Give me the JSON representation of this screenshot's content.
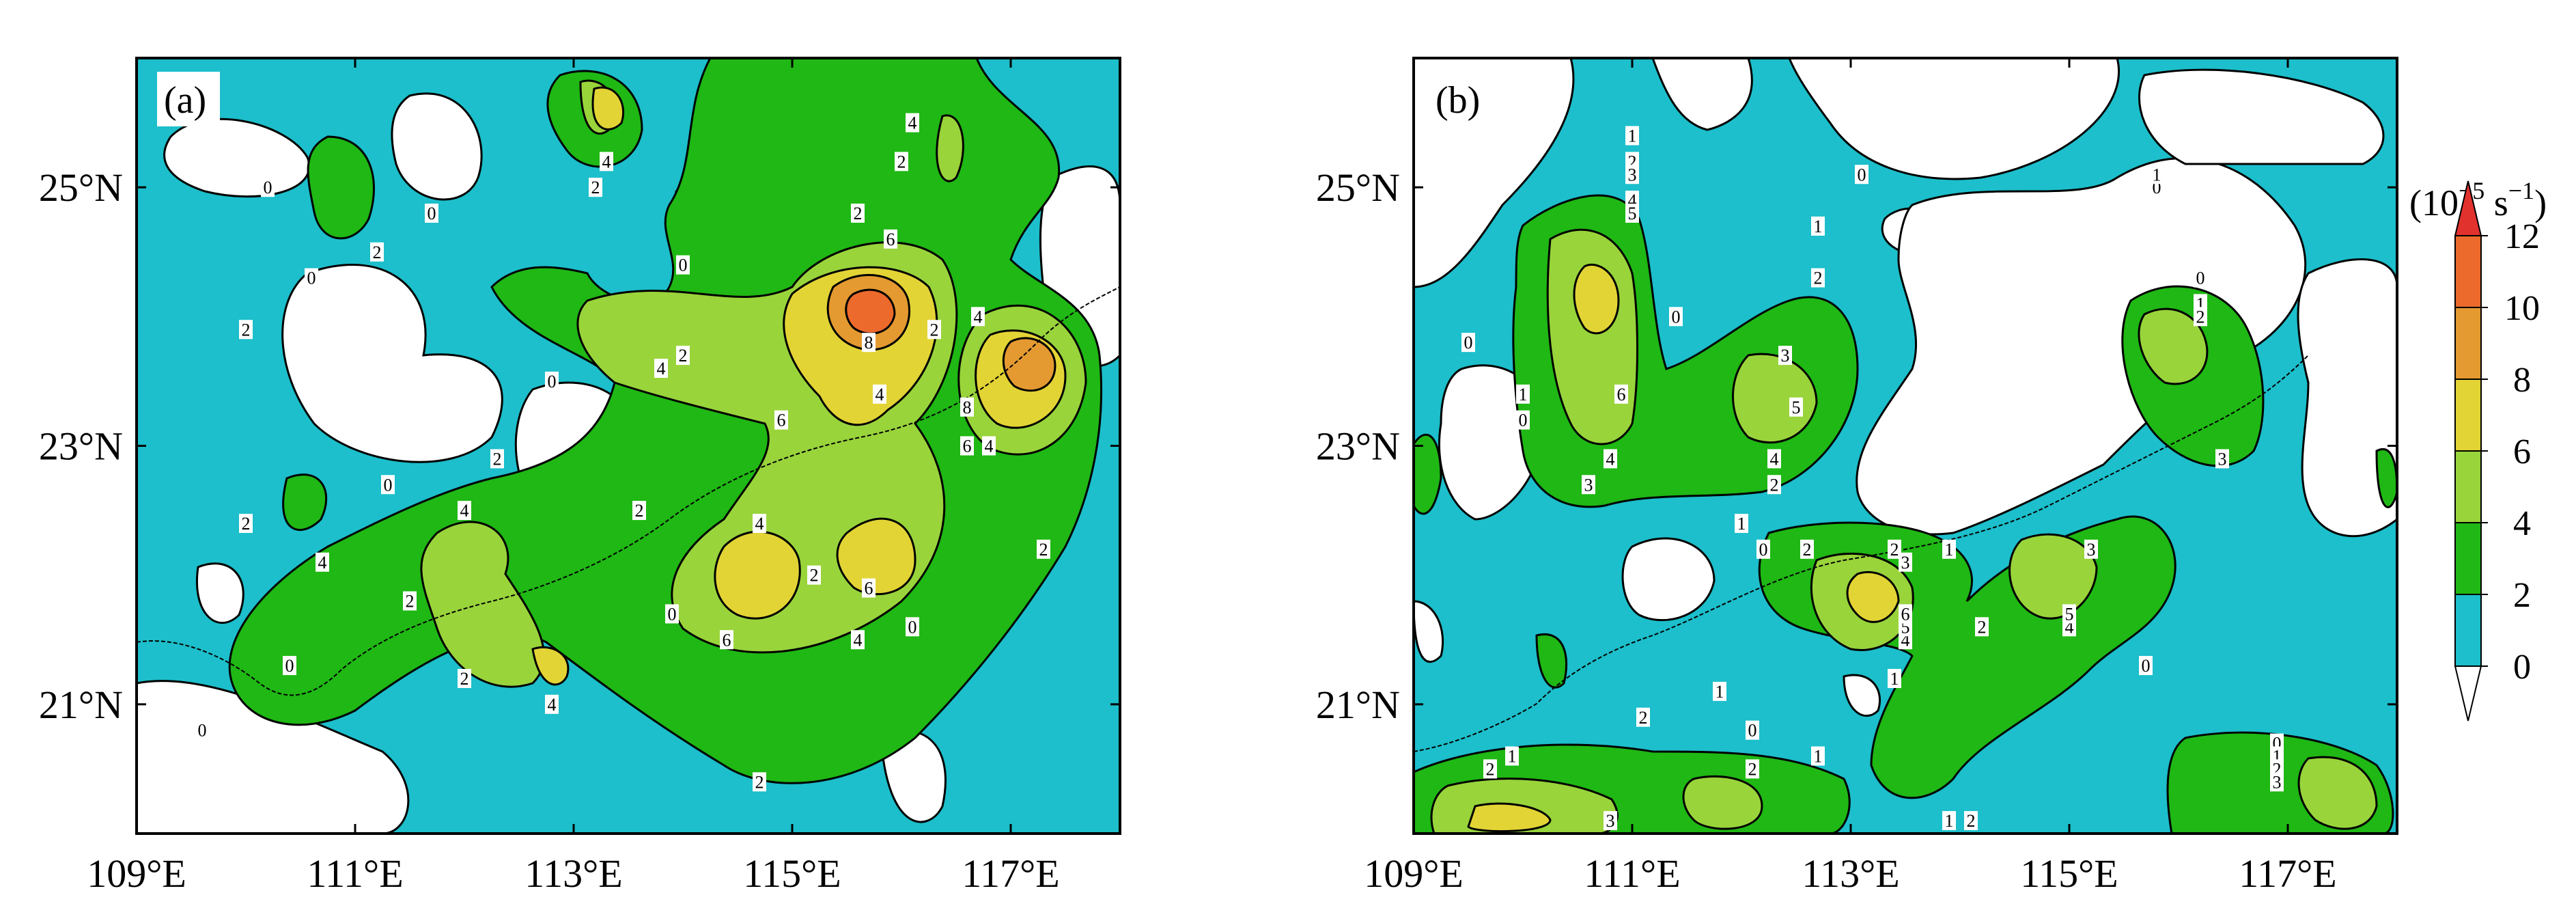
{
  "chart_data": [
    {
      "type": "heatmap",
      "panel_label": "(a)",
      "x_ticks": [
        "109°E",
        "111°E",
        "113°E",
        "115°E",
        "117°E"
      ],
      "y_ticks": [
        "21°N",
        "23°N",
        "25°N"
      ],
      "xlim": [
        109,
        118
      ],
      "ylim": [
        20,
        26
      ],
      "contour_labels": [
        {
          "lon": 109.6,
          "lat": 20.8,
          "text": "0"
        },
        {
          "lon": 110.4,
          "lat": 21.3,
          "text": "0"
        },
        {
          "lon": 111.3,
          "lat": 22.7,
          "text": "0"
        },
        {
          "lon": 112.8,
          "lat": 23.5,
          "text": "0"
        },
        {
          "lon": 113.9,
          "lat": 21.7,
          "text": "0"
        },
        {
          "lon": 116.1,
          "lat": 21.6,
          "text": "0"
        },
        {
          "lon": 110.2,
          "lat": 25.0,
          "text": "0"
        },
        {
          "lon": 110.6,
          "lat": 24.3,
          "text": "0"
        },
        {
          "lon": 111.7,
          "lat": 24.8,
          "text": "0"
        },
        {
          "lon": 114.0,
          "lat": 24.4,
          "text": "0"
        },
        {
          "lon": 110.0,
          "lat": 23.9,
          "text": "2"
        },
        {
          "lon": 110.0,
          "lat": 22.4,
          "text": "2"
        },
        {
          "lon": 111.2,
          "lat": 24.5,
          "text": "2"
        },
        {
          "lon": 112.3,
          "lat": 22.9,
          "text": "2"
        },
        {
          "lon": 113.2,
          "lat": 25.0,
          "text": "2"
        },
        {
          "lon": 114.0,
          "lat": 23.7,
          "text": "2"
        },
        {
          "lon": 115.6,
          "lat": 24.8,
          "text": "2"
        },
        {
          "lon": 116.0,
          "lat": 25.2,
          "text": "2"
        },
        {
          "lon": 116.3,
          "lat": 23.9,
          "text": "2"
        },
        {
          "lon": 111.5,
          "lat": 21.8,
          "text": "2"
        },
        {
          "lon": 112.0,
          "lat": 21.2,
          "text": "2"
        },
        {
          "lon": 113.6,
          "lat": 22.5,
          "text": "2"
        },
        {
          "lon": 115.2,
          "lat": 22.0,
          "text": "2"
        },
        {
          "lon": 114.7,
          "lat": 20.4,
          "text": "2"
        },
        {
          "lon": 117.3,
          "lat": 22.2,
          "text": "2"
        },
        {
          "lon": 110.7,
          "lat": 22.1,
          "text": "4"
        },
        {
          "lon": 112.0,
          "lat": 22.5,
          "text": "4"
        },
        {
          "lon": 113.8,
          "lat": 23.6,
          "text": "4"
        },
        {
          "lon": 113.3,
          "lat": 25.2,
          "text": "4"
        },
        {
          "lon": 114.7,
          "lat": 22.4,
          "text": "4"
        },
        {
          "lon": 115.6,
          "lat": 21.5,
          "text": "4"
        },
        {
          "lon": 112.8,
          "lat": 21.0,
          "text": "4"
        },
        {
          "lon": 116.1,
          "lat": 25.5,
          "text": "4"
        },
        {
          "lon": 115.8,
          "lat": 23.4,
          "text": "4"
        },
        {
          "lon": 116.7,
          "lat": 24.0,
          "text": "4"
        },
        {
          "lon": 116.8,
          "lat": 23.0,
          "text": "4"
        },
        {
          "lon": 115.9,
          "lat": 24.6,
          "text": "6"
        },
        {
          "lon": 114.9,
          "lat": 23.2,
          "text": "6"
        },
        {
          "lon": 114.4,
          "lat": 21.5,
          "text": "6"
        },
        {
          "lon": 115.7,
          "lat": 21.9,
          "text": "6"
        },
        {
          "lon": 116.6,
          "lat": 23.0,
          "text": "6"
        },
        {
          "lon": 115.7,
          "lat": 23.8,
          "text": "8"
        },
        {
          "lon": 116.6,
          "lat": 23.3,
          "text": "8"
        }
      ]
    },
    {
      "type": "heatmap",
      "panel_label": "(b)",
      "x_ticks": [
        "109°E",
        "111°E",
        "113°E",
        "115°E",
        "117°E"
      ],
      "y_ticks": [
        "21°N",
        "23°N",
        "25°N"
      ],
      "xlim": [
        109,
        118
      ],
      "ylim": [
        20,
        26
      ],
      "contour_labels": [
        {
          "lon": 109.5,
          "lat": 23.8,
          "text": "0"
        },
        {
          "lon": 110.0,
          "lat": 23.2,
          "text": "0"
        },
        {
          "lon": 111.4,
          "lat": 24.0,
          "text": "0"
        },
        {
          "lon": 112.2,
          "lat": 22.2,
          "text": "0"
        },
        {
          "lon": 113.1,
          "lat": 25.1,
          "text": "0"
        },
        {
          "lon": 115.8,
          "lat": 25.0,
          "text": "0"
        },
        {
          "lon": 116.2,
          "lat": 24.3,
          "text": "0"
        },
        {
          "lon": 115.7,
          "lat": 21.3,
          "text": "0"
        },
        {
          "lon": 112.1,
          "lat": 20.8,
          "text": "0"
        },
        {
          "lon": 116.9,
          "lat": 20.7,
          "text": "0"
        },
        {
          "lon": 110.0,
          "lat": 23.4,
          "text": "1"
        },
        {
          "lon": 111.0,
          "lat": 25.4,
          "text": "1"
        },
        {
          "lon": 112.7,
          "lat": 24.7,
          "text": "1"
        },
        {
          "lon": 115.8,
          "lat": 25.1,
          "text": "1"
        },
        {
          "lon": 112.0,
          "lat": 22.4,
          "text": "1"
        },
        {
          "lon": 113.9,
          "lat": 22.2,
          "text": "1"
        },
        {
          "lon": 111.8,
          "lat": 21.1,
          "text": "1"
        },
        {
          "lon": 113.4,
          "lat": 21.2,
          "text": "1"
        },
        {
          "lon": 112.7,
          "lat": 20.6,
          "text": "1"
        },
        {
          "lon": 109.9,
          "lat": 20.6,
          "text": "1"
        },
        {
          "lon": 113.9,
          "lat": 20.1,
          "text": "1"
        },
        {
          "lon": 116.2,
          "lat": 24.1,
          "text": "1"
        },
        {
          "lon": 116.9,
          "lat": 20.6,
          "text": "1"
        },
        {
          "lon": 111.0,
          "lat": 25.2,
          "text": "2"
        },
        {
          "lon": 112.7,
          "lat": 24.3,
          "text": "2"
        },
        {
          "lon": 112.3,
          "lat": 22.7,
          "text": "2"
        },
        {
          "lon": 112.6,
          "lat": 22.2,
          "text": "2"
        },
        {
          "lon": 113.4,
          "lat": 22.2,
          "text": "2"
        },
        {
          "lon": 114.2,
          "lat": 21.6,
          "text": "2"
        },
        {
          "lon": 111.1,
          "lat": 20.9,
          "text": "2"
        },
        {
          "lon": 109.7,
          "lat": 20.5,
          "text": "2"
        },
        {
          "lon": 112.1,
          "lat": 20.5,
          "text": "2"
        },
        {
          "lon": 114.1,
          "lat": 20.1,
          "text": "2"
        },
        {
          "lon": 116.2,
          "lat": 24.0,
          "text": "2"
        },
        {
          "lon": 116.9,
          "lat": 20.5,
          "text": "2"
        },
        {
          "lon": 111.0,
          "lat": 25.1,
          "text": "3"
        },
        {
          "lon": 112.4,
          "lat": 23.7,
          "text": "3"
        },
        {
          "lon": 110.6,
          "lat": 22.7,
          "text": "3"
        },
        {
          "lon": 113.5,
          "lat": 22.1,
          "text": "3"
        },
        {
          "lon": 115.2,
          "lat": 22.2,
          "text": "3"
        },
        {
          "lon": 116.4,
          "lat": 22.9,
          "text": "3"
        },
        {
          "lon": 110.8,
          "lat": 20.1,
          "text": "3"
        },
        {
          "lon": 116.9,
          "lat": 20.4,
          "text": "3"
        },
        {
          "lon": 111.0,
          "lat": 24.9,
          "text": "4"
        },
        {
          "lon": 110.8,
          "lat": 22.9,
          "text": "4"
        },
        {
          "lon": 112.3,
          "lat": 22.9,
          "text": "4"
        },
        {
          "lon": 113.5,
          "lat": 21.5,
          "text": "4"
        },
        {
          "lon": 115.0,
          "lat": 21.6,
          "text": "4"
        },
        {
          "lon": 111.0,
          "lat": 24.8,
          "text": "5"
        },
        {
          "lon": 112.5,
          "lat": 23.3,
          "text": "5"
        },
        {
          "lon": 113.5,
          "lat": 21.6,
          "text": "5"
        },
        {
          "lon": 115.0,
          "lat": 21.7,
          "text": "5"
        },
        {
          "lon": 110.9,
          "lat": 23.4,
          "text": "6"
        },
        {
          "lon": 113.5,
          "lat": 21.7,
          "text": "6"
        }
      ]
    }
  ],
  "colorbar": {
    "title_base": "(10",
    "title_exp": "−5",
    "title_unit": " s",
    "title_unit_exp": "−1",
    "title_close": ")",
    "ticks": [
      "12",
      "10",
      "8",
      "6",
      "4",
      "2",
      "0"
    ],
    "levels": [
      0,
      2,
      4,
      6,
      8,
      10,
      12
    ],
    "colors": [
      "#ffffff",
      "#1cbfcb",
      "#1fb814",
      "#99d43b",
      "#e3d435",
      "#e49a30",
      "#ec6a2c",
      "#e2322e"
    ]
  }
}
